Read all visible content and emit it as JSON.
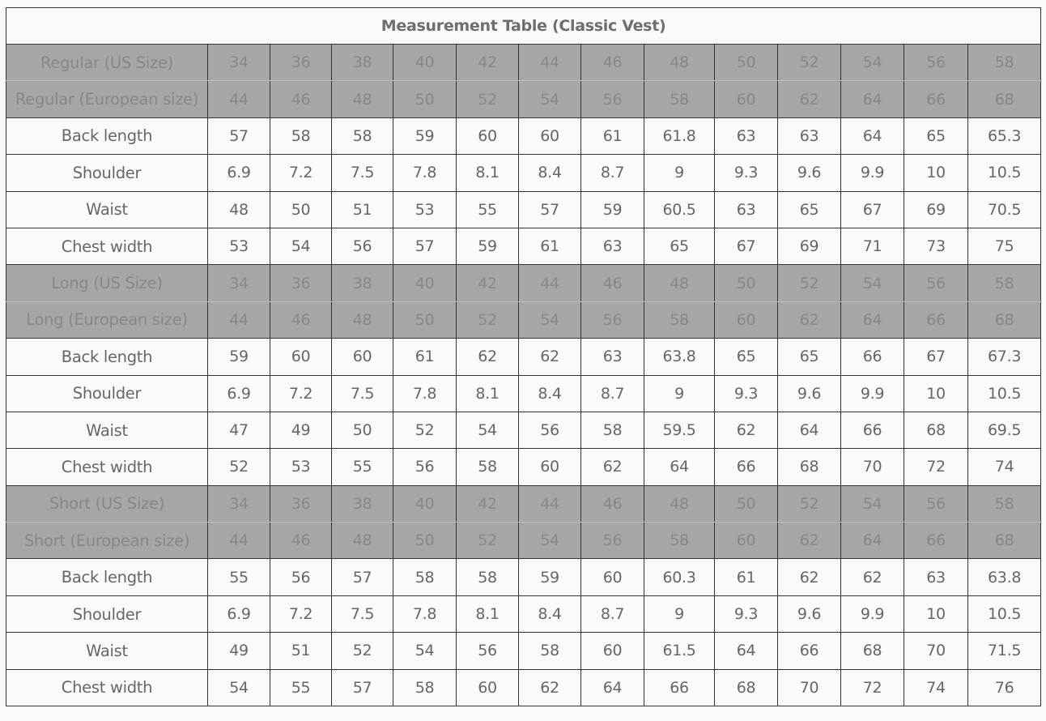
{
  "title": "Measurement Table (Classic Vest)",
  "rows": [
    {
      "type": "size-us",
      "label": "Regular (US Size)",
      "values": [
        "34",
        "36",
        "38",
        "40",
        "42",
        "44",
        "46",
        "48",
        "50",
        "52",
        "54",
        "56",
        "58"
      ]
    },
    {
      "type": "size-eu",
      "label": "Regular (European size)",
      "values": [
        "44",
        "46",
        "48",
        "50",
        "52",
        "54",
        "56",
        "58",
        "60",
        "62",
        "64",
        "66",
        "68"
      ]
    },
    {
      "type": "measure",
      "label": "Back length",
      "values": [
        "57",
        "58",
        "58",
        "59",
        "60",
        "60",
        "61",
        "61.8",
        "63",
        "63",
        "64",
        "65",
        "65.3"
      ]
    },
    {
      "type": "measure",
      "label": "Shoulder",
      "values": [
        "6.9",
        "7.2",
        "7.5",
        "7.8",
        "8.1",
        "8.4",
        "8.7",
        "9",
        "9.3",
        "9.6",
        "9.9",
        "10",
        "10.5"
      ]
    },
    {
      "type": "measure",
      "label": "Waist",
      "values": [
        "48",
        "50",
        "51",
        "53",
        "55",
        "57",
        "59",
        "60.5",
        "63",
        "65",
        "67",
        "69",
        "70.5"
      ]
    },
    {
      "type": "measure",
      "label": "Chest width",
      "values": [
        "53",
        "54",
        "56",
        "57",
        "59",
        "61",
        "63",
        "65",
        "67",
        "69",
        "71",
        "73",
        "75"
      ]
    },
    {
      "type": "size-us",
      "label": "Long (US Size)",
      "values": [
        "34",
        "36",
        "38",
        "40",
        "42",
        "44",
        "46",
        "48",
        "50",
        "52",
        "54",
        "56",
        "58"
      ]
    },
    {
      "type": "size-eu",
      "label": "Long (European size)",
      "values": [
        "44",
        "46",
        "48",
        "50",
        "52",
        "54",
        "56",
        "58",
        "60",
        "62",
        "64",
        "66",
        "68"
      ]
    },
    {
      "type": "measure",
      "label": "Back length",
      "values": [
        "59",
        "60",
        "60",
        "61",
        "62",
        "62",
        "63",
        "63.8",
        "65",
        "65",
        "66",
        "67",
        "67.3"
      ]
    },
    {
      "type": "measure",
      "label": "Shoulder",
      "values": [
        "6.9",
        "7.2",
        "7.5",
        "7.8",
        "8.1",
        "8.4",
        "8.7",
        "9",
        "9.3",
        "9.6",
        "9.9",
        "10",
        "10.5"
      ]
    },
    {
      "type": "measure",
      "label": "Waist",
      "values": [
        "47",
        "49",
        "50",
        "52",
        "54",
        "56",
        "58",
        "59.5",
        "62",
        "64",
        "66",
        "68",
        "69.5"
      ]
    },
    {
      "type": "measure",
      "label": "Chest width",
      "values": [
        "52",
        "53",
        "55",
        "56",
        "58",
        "60",
        "62",
        "64",
        "66",
        "68",
        "70",
        "72",
        "74"
      ]
    },
    {
      "type": "size-us",
      "label": "Short (US Size)",
      "values": [
        "34",
        "36",
        "38",
        "40",
        "42",
        "44",
        "46",
        "48",
        "50",
        "52",
        "54",
        "56",
        "58"
      ]
    },
    {
      "type": "size-eu",
      "label": "Short (European size)",
      "values": [
        "44",
        "46",
        "48",
        "50",
        "52",
        "54",
        "56",
        "58",
        "60",
        "62",
        "64",
        "66",
        "68"
      ]
    },
    {
      "type": "measure",
      "label": "Back length",
      "values": [
        "55",
        "56",
        "57",
        "58",
        "58",
        "59",
        "60",
        "60.3",
        "61",
        "62",
        "62",
        "63",
        "63.8"
      ]
    },
    {
      "type": "measure",
      "label": "Shoulder",
      "values": [
        "6.9",
        "7.2",
        "7.5",
        "7.8",
        "8.1",
        "8.4",
        "8.7",
        "9",
        "9.3",
        "9.6",
        "9.9",
        "10",
        "10.5"
      ]
    },
    {
      "type": "measure",
      "label": "Waist",
      "values": [
        "49",
        "51",
        "52",
        "54",
        "56",
        "58",
        "60",
        "61.5",
        "64",
        "66",
        "68",
        "70",
        "71.5"
      ]
    },
    {
      "type": "measure",
      "label": "Chest width",
      "values": [
        "54",
        "55",
        "57",
        "58",
        "60",
        "62",
        "64",
        "66",
        "68",
        "70",
        "72",
        "74",
        "76"
      ]
    }
  ],
  "colors": {
    "size_row_bg": "#a6a6a6",
    "size_row_text": "#878787",
    "text": "#666666",
    "border": "#333333",
    "background": "#fafafa"
  }
}
